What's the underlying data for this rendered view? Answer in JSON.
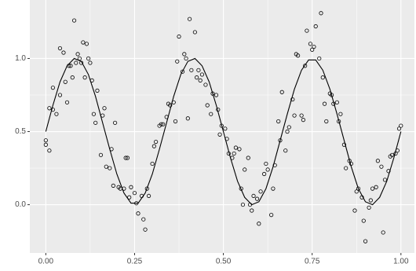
{
  "chart_data": {
    "type": "scatter",
    "xlim": [
      -0.045,
      1.038
    ],
    "ylim": [
      -0.33,
      1.4
    ],
    "xticks": [
      {
        "value": 0,
        "label": "0.00"
      },
      0.25,
      {
        "value": 0.5,
        "label": "0.50"
      },
      0.75,
      {
        "value": 1,
        "label": "1.00"
      }
    ],
    "yticks": [
      {
        "value": 0,
        "label": "0.0"
      },
      0.5,
      {
        "value": 1,
        "label": "1.0"
      }
    ],
    "grid": true,
    "minor_grid": true,
    "panel_color": "#ebebeb",
    "series": [
      {
        "type": "scatter",
        "color": "#000000",
        "x": [
          0.0,
          0.0,
          0.01,
          0.01,
          0.02,
          0.03,
          0.02,
          0.04,
          0.04,
          0.05,
          0.055,
          0.06,
          0.065,
          0.07,
          0.075,
          0.08,
          0.085,
          0.09,
          0.095,
          0.1,
          0.105,
          0.11,
          0.115,
          0.12,
          0.125,
          0.13,
          0.135,
          0.14,
          0.145,
          0.155,
          0.16,
          0.165,
          0.17,
          0.18,
          0.185,
          0.19,
          0.195,
          0.205,
          0.21,
          0.22,
          0.225,
          0.23,
          0.235,
          0.24,
          0.25,
          0.255,
          0.26,
          0.27,
          0.275,
          0.28,
          0.285,
          0.29,
          0.3,
          0.305,
          0.31,
          0.32,
          0.325,
          0.33,
          0.34,
          0.345,
          0.35,
          0.36,
          0.365,
          0.37,
          0.375,
          0.385,
          0.39,
          0.395,
          0.4,
          0.405,
          0.41,
          0.42,
          0.425,
          0.43,
          0.435,
          0.44,
          0.45,
          0.455,
          0.465,
          0.47,
          0.48,
          0.485,
          0.49,
          0.495,
          0.505,
          0.51,
          0.515,
          0.525,
          0.53,
          0.535,
          0.545,
          0.55,
          0.555,
          0.56,
          0.57,
          0.575,
          0.58,
          0.585,
          0.595,
          0.6,
          0.605,
          0.615,
          0.62,
          0.625,
          0.635,
          0.64,
          0.645,
          0.655,
          0.66,
          0.665,
          0.675,
          0.68,
          0.685,
          0.695,
          0.7,
          0.705,
          0.71,
          0.72,
          0.725,
          0.73,
          0.735,
          0.745,
          0.75,
          0.755,
          0.76,
          0.77,
          0.775,
          0.78,
          0.785,
          0.79,
          0.8,
          0.805,
          0.81,
          0.82,
          0.825,
          0.83,
          0.84,
          0.845,
          0.855,
          0.86,
          0.87,
          0.875,
          0.88,
          0.89,
          0.895,
          0.9,
          0.91,
          0.915,
          0.92,
          0.93,
          0.935,
          0.945,
          0.95,
          0.955,
          0.965,
          0.97,
          0.975,
          0.985,
          0.99,
          0.995,
          1.0
        ],
        "values": [
          0.41,
          0.44,
          0.37,
          0.66,
          0.65,
          0.62,
          0.8,
          0.75,
          1.07,
          1.04,
          0.84,
          0.7,
          0.95,
          0.95,
          0.87,
          1.26,
          0.97,
          1.03,
          1.0,
          0.97,
          1.11,
          0.87,
          1.1,
          1.0,
          0.97,
          0.85,
          0.62,
          0.56,
          0.78,
          0.34,
          0.61,
          0.66,
          0.26,
          0.25,
          0.38,
          0.13,
          0.56,
          0.12,
          0.11,
          0.11,
          0.32,
          0.32,
          0.05,
          0.12,
          0.08,
          0.01,
          -0.06,
          0.06,
          -0.1,
          -0.17,
          0.11,
          0.06,
          0.28,
          0.4,
          0.43,
          0.54,
          0.55,
          0.55,
          0.6,
          0.69,
          0.68,
          0.7,
          0.57,
          0.98,
          1.15,
          0.91,
          1.03,
          1.0,
          0.59,
          1.27,
          0.92,
          1.18,
          0.87,
          0.92,
          0.85,
          0.89,
          0.82,
          0.68,
          0.62,
          0.76,
          0.75,
          0.65,
          0.48,
          0.54,
          0.52,
          0.45,
          0.35,
          0.32,
          0.35,
          0.39,
          0.38,
          0.11,
          0.0,
          0.24,
          0.32,
          0.0,
          -0.04,
          0.06,
          0.04,
          -0.13,
          0.09,
          0.21,
          0.28,
          0.24,
          -0.07,
          0.11,
          0.27,
          0.57,
          0.44,
          0.77,
          0.37,
          0.5,
          0.53,
          0.72,
          0.61,
          1.03,
          1.02,
          0.61,
          0.58,
          0.95,
          1.19,
          1.1,
          1.06,
          1.08,
          1.22,
          1.0,
          1.31,
          0.87,
          0.69,
          0.57,
          0.76,
          0.75,
          0.69,
          0.7,
          0.57,
          0.62,
          0.41,
          0.25,
          0.3,
          0.28,
          -0.04,
          0.09,
          0.11,
          0.05,
          -0.11,
          -0.25,
          -0.02,
          0.03,
          0.11,
          0.12,
          0.3,
          0.26,
          -0.19,
          0.17,
          0.23,
          0.33,
          0.34,
          0.35,
          0.37,
          0.52,
          0.54
        ]
      },
      {
        "type": "line",
        "color": "#000000",
        "x": [
          0,
          0.02,
          0.04,
          0.06,
          0.08,
          0.1,
          0.12,
          0.14,
          0.16,
          0.18,
          0.2,
          0.22,
          0.24,
          0.26,
          0.28,
          0.3,
          0.32,
          0.34,
          0.36,
          0.38,
          0.4,
          0.42,
          0.44,
          0.46,
          0.48,
          0.5,
          0.52,
          0.54,
          0.56,
          0.58,
          0.6,
          0.62,
          0.64,
          0.66,
          0.68,
          0.7,
          0.72,
          0.74,
          0.76,
          0.78,
          0.8,
          0.82,
          0.84,
          0.86,
          0.88,
          0.9,
          0.92,
          0.94,
          0.96,
          0.98,
          1
        ],
        "values": [
          0.5,
          0.68,
          0.84,
          0.95,
          1.0,
          0.98,
          0.89,
          0.74,
          0.56,
          0.38,
          0.21,
          0.08,
          0.01,
          0.01,
          0.08,
          0.21,
          0.38,
          0.56,
          0.74,
          0.89,
          0.98,
          1.0,
          0.95,
          0.84,
          0.68,
          0.5,
          0.32,
          0.16,
          0.05,
          0.0,
          0.02,
          0.11,
          0.26,
          0.44,
          0.62,
          0.79,
          0.92,
          0.99,
          0.99,
          0.92,
          0.79,
          0.62,
          0.44,
          0.26,
          0.11,
          0.02,
          0.0,
          0.05,
          0.16,
          0.32,
          0.5
        ]
      }
    ]
  }
}
